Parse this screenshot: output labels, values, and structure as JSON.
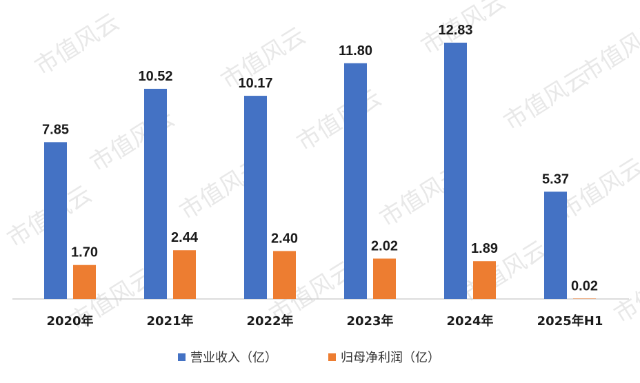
{
  "watermark_text": "市值风云",
  "chart_data": {
    "type": "bar",
    "title": "",
    "xlabel": "",
    "ylabel": "",
    "ylim": [
      0,
      14
    ],
    "grid": false,
    "legend_position": "bottom",
    "categories": [
      "2020年",
      "2021年",
      "2022年",
      "2023年",
      "2024年",
      "2025年H1"
    ],
    "series": [
      {
        "name": "营业收入（亿）",
        "color": "#4472C4",
        "values": [
          7.85,
          10.52,
          10.17,
          11.8,
          12.83,
          5.37
        ],
        "labels": [
          "7.85",
          "10.52",
          "10.17",
          "11.80",
          "12.83",
          "5.37"
        ]
      },
      {
        "name": "归母净利润（亿）",
        "color": "#ED7D31",
        "values": [
          1.7,
          2.44,
          2.4,
          2.02,
          1.89,
          0.02
        ],
        "labels": [
          "1.70",
          "2.44",
          "2.40",
          "2.02",
          "1.89",
          "0.02"
        ]
      }
    ]
  }
}
